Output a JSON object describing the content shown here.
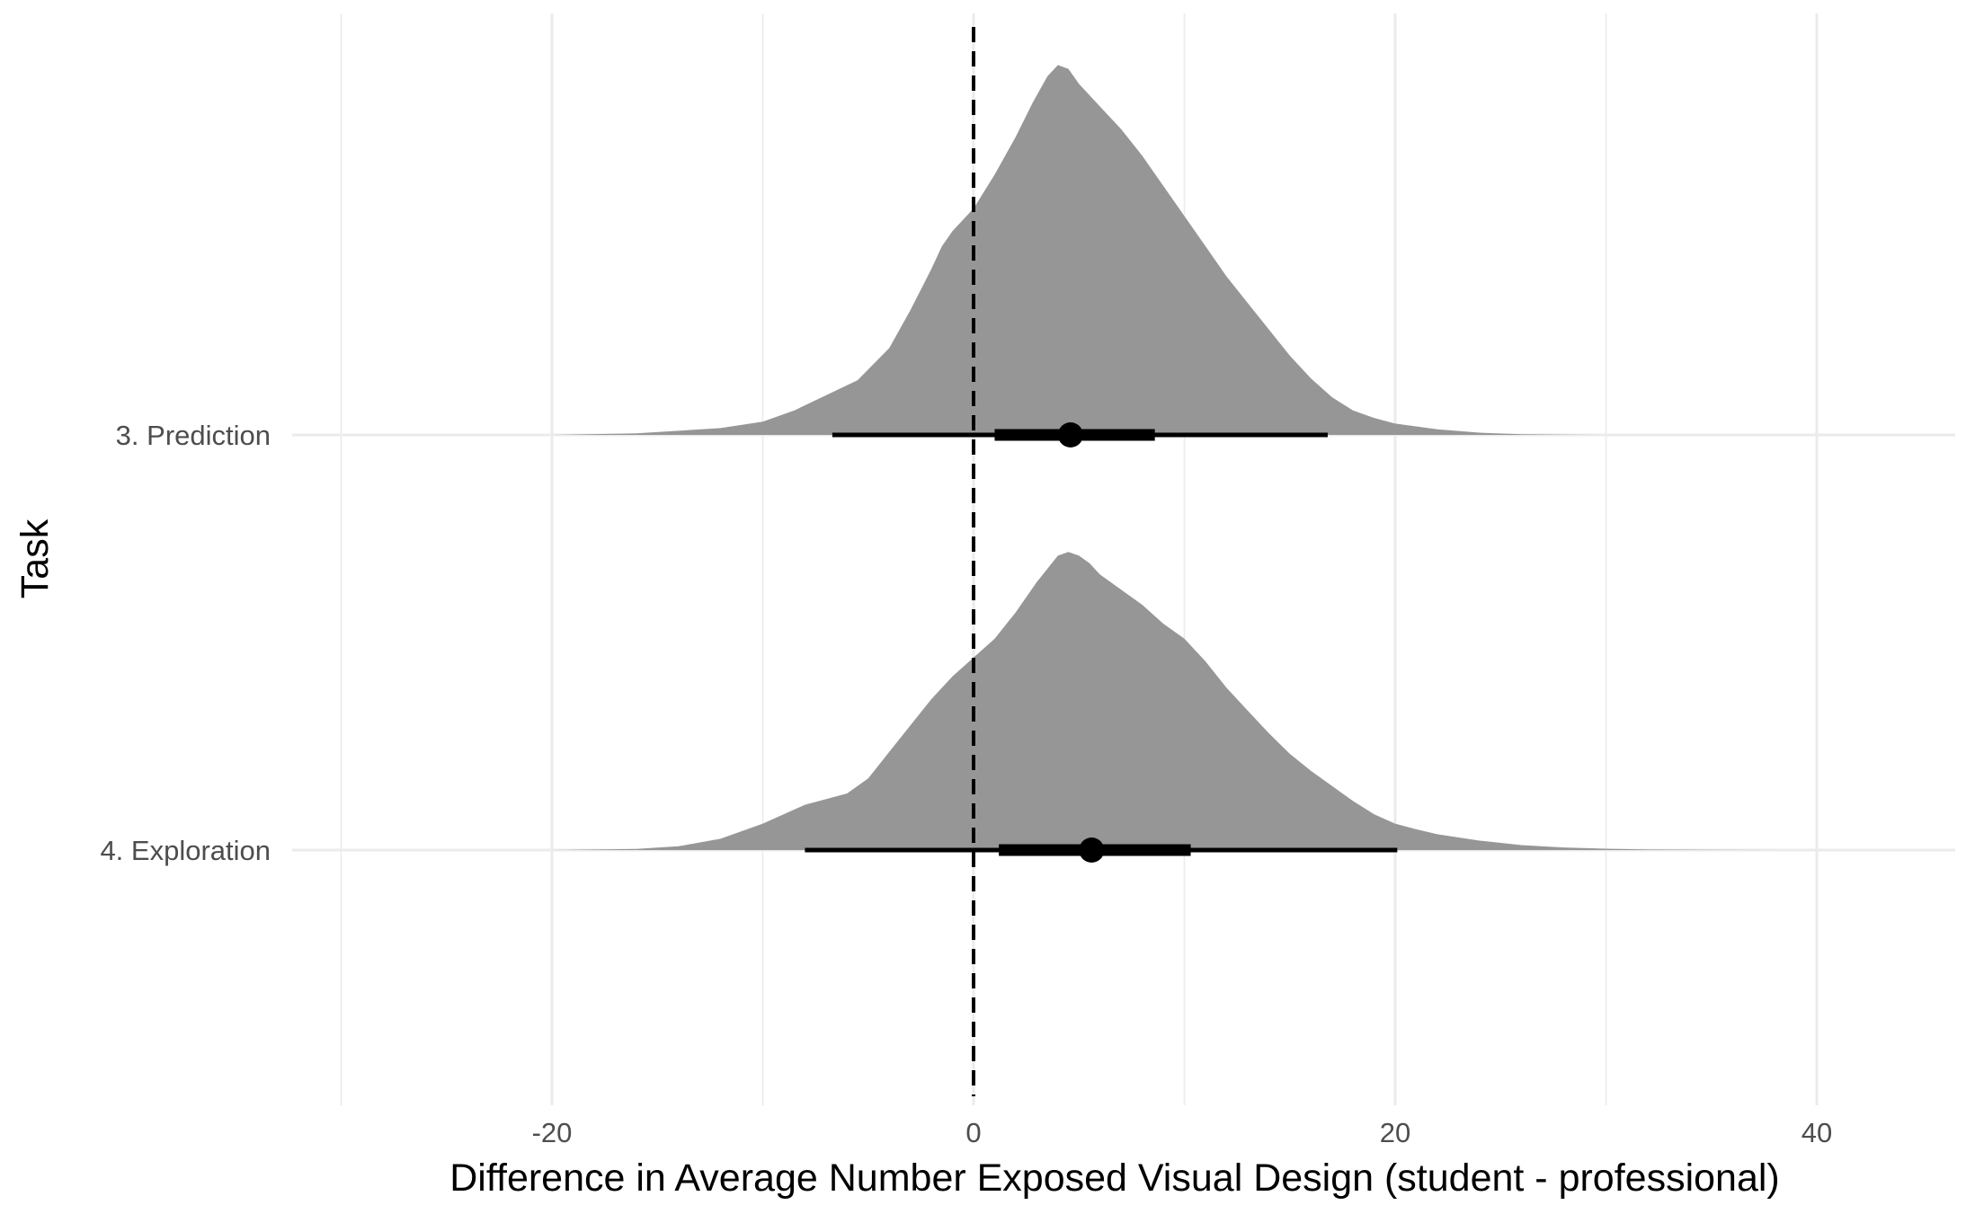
{
  "chart_data": {
    "type": "halfeye",
    "title": "",
    "xlabel": "Difference in Average Number Exposed Visual Design (student - professional)",
    "ylabel": "Task",
    "xlim": [
      -30,
      45
    ],
    "xticks": [
      -20,
      0,
      20,
      40
    ],
    "xminor": [
      -30,
      -10,
      10,
      30
    ],
    "grid": true,
    "reference_line": {
      "x": 0,
      "style": "dashed"
    },
    "colors": {
      "density": "#969696",
      "interval": "#000000",
      "grid": "#ebebeb",
      "tick_text": "#4d4d4d"
    },
    "series": [
      {
        "name": "3. Prediction",
        "point": 4.6,
        "interval_66": [
          1.0,
          8.6
        ],
        "interval_95": [
          -6.7,
          16.8
        ],
        "density_x": [
          -30,
          -20,
          -16,
          -12,
          -10,
          -8.5,
          -7,
          -5.5,
          -4,
          -3,
          -2,
          -1.5,
          -1,
          0,
          1,
          2,
          2.8,
          3.5,
          4,
          4.5,
          5,
          6,
          7,
          8,
          9,
          10,
          11,
          12,
          13,
          14,
          15,
          16,
          17,
          18,
          19,
          20,
          22,
          24,
          26,
          28,
          30,
          32
        ],
        "density_y": [
          0.0,
          0.0,
          0.004,
          0.018,
          0.035,
          0.065,
          0.105,
          0.145,
          0.23,
          0.33,
          0.44,
          0.5,
          0.54,
          0.6,
          0.69,
          0.79,
          0.88,
          0.95,
          0.98,
          0.97,
          0.93,
          0.87,
          0.81,
          0.74,
          0.66,
          0.58,
          0.5,
          0.42,
          0.35,
          0.28,
          0.21,
          0.15,
          0.1,
          0.065,
          0.045,
          0.03,
          0.015,
          0.006,
          0.002,
          0.0005,
          0.0,
          0.0
        ]
      },
      {
        "name": "4. Exploration",
        "point": 5.6,
        "interval_66": [
          1.2,
          10.3
        ],
        "interval_95": [
          -8.0,
          20.1
        ],
        "density_x": [
          -29,
          -20,
          -16,
          -14,
          -12,
          -10,
          -8,
          -6,
          -5,
          -4,
          -3,
          -2,
          -1,
          0,
          1,
          2,
          3,
          4,
          4.5,
          5,
          5.5,
          6,
          7,
          8,
          9,
          10,
          11,
          12,
          13,
          14,
          15,
          16,
          17,
          18,
          19,
          20,
          21,
          22,
          24,
          26,
          28,
          30,
          32,
          35,
          38,
          43
        ],
        "density_y": [
          0.0,
          0.0,
          0.003,
          0.01,
          0.03,
          0.07,
          0.12,
          0.15,
          0.19,
          0.26,
          0.33,
          0.4,
          0.46,
          0.51,
          0.56,
          0.63,
          0.71,
          0.78,
          0.79,
          0.78,
          0.76,
          0.73,
          0.69,
          0.65,
          0.6,
          0.56,
          0.5,
          0.43,
          0.37,
          0.31,
          0.255,
          0.21,
          0.17,
          0.13,
          0.095,
          0.07,
          0.055,
          0.042,
          0.025,
          0.013,
          0.007,
          0.0035,
          0.0015,
          0.0005,
          0.0,
          0.0
        ]
      }
    ]
  }
}
